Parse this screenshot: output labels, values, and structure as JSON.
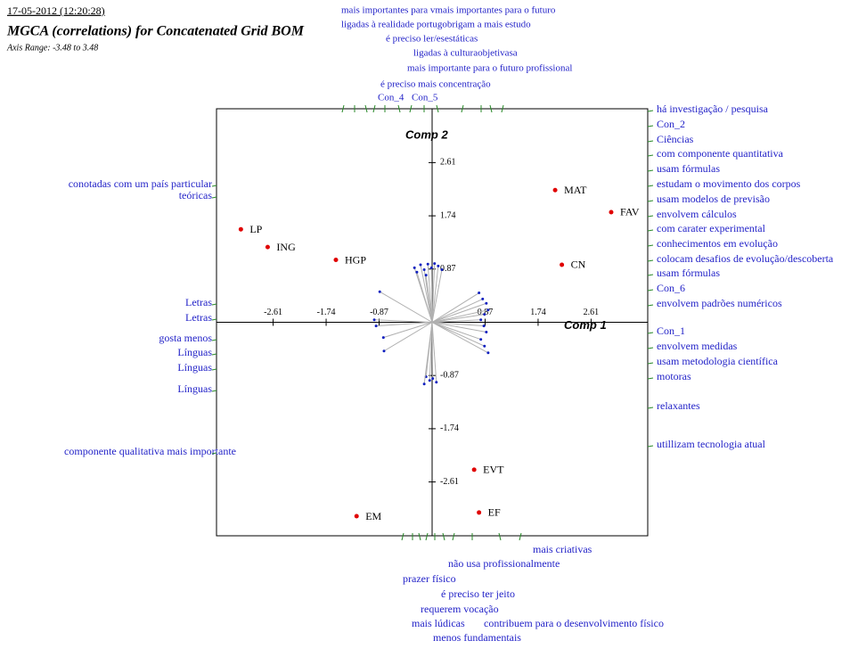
{
  "chart_data": {
    "type": "scatter",
    "timestamp": "17-05-2012 (12:20:28)",
    "title": "MGCA (correlations) for Concatenated Grid BOM",
    "subtitle": "Axis Range:   -3.48 to   3.48",
    "x_label": "Comp 1",
    "y_label": "Comp 2",
    "xlim": [
      -3.54,
      3.54
    ],
    "ylim": [
      -3.49,
      3.49
    ],
    "xticks": [
      -2.61,
      -1.74,
      -0.87,
      0.87,
      1.74,
      2.61
    ],
    "yticks": [
      2.61,
      1.74,
      0.87,
      -0.87,
      -1.74,
      -2.61
    ],
    "point_color": "#e00000",
    "vector_color": "#b0b0b0",
    "elements": {
      "names": [
        "MAT",
        "FAV",
        "CN",
        "LP",
        "ING",
        "HGP",
        "EVT",
        "EF",
        "EM"
      ],
      "x": [
        2.02,
        2.94,
        2.13,
        -3.14,
        -2.7,
        -1.58,
        0.69,
        0.77,
        -1.24
      ],
      "y": [
        2.16,
        1.8,
        0.94,
        1.52,
        1.23,
        1.02,
        -2.41,
        -3.11,
        -3.17
      ]
    },
    "vectors": {
      "x": [
        -0.29,
        -0.25,
        -0.19,
        -0.13,
        -0.07,
        -0.01,
        0.04,
        0.1,
        0.16,
        -0.1,
        0.77,
        0.83,
        0.89,
        0.92,
        0.86,
        0.8,
        0.85,
        0.89,
        0.8,
        0.86,
        0.92,
        -0.86,
        -0.95,
        -0.92,
        -0.8,
        -0.79,
        -0.1,
        -0.04,
        0.01,
        0.07,
        -0.13
      ],
      "y": [
        0.89,
        0.82,
        0.94,
        0.86,
        0.95,
        0.89,
        0.96,
        0.92,
        0.86,
        0.77,
        0.48,
        0.38,
        0.31,
        0.2,
        0.13,
        0.04,
        -0.06,
        -0.16,
        -0.28,
        -0.39,
        -0.5,
        0.5,
        0.04,
        -0.06,
        -0.25,
        -0.47,
        -0.89,
        -0.95,
        -0.92,
        -0.98,
        -1.01
      ]
    },
    "constructs": {
      "top": [
        "mais importantes para vmais importantes para o futuro",
        "ligadas à realidade portugobrigam a mais estudo",
        "é preciso ler/esestáticas",
        "ligadas à culturaobjetivasa",
        "mais importante para o futuro profissional",
        "é preciso mais concentração",
        "Con_4",
        "Con_5"
      ],
      "right": [
        "há investigação / pesquisa",
        "Con_2",
        "Ciências",
        "com componente quantitativa",
        "usam fórmulas",
        "estudam o movimento dos corpos",
        "usam modelos de previsão",
        "envolvem cálculos",
        "com carater experimental",
        "conhecimentos em evolução",
        "colocam desafios de evolução/descoberta",
        "usam fórmulas",
        "Con_6",
        "envolvem padrões numéricos",
        "Con_1",
        "envolvem medidas",
        "usam metodologia científica",
        "motoras",
        "relaxantes",
        "utillizam tecnologia atual"
      ],
      "left": [
        "conotadas com um país particular",
        "teóricas",
        "Letras",
        "Letras",
        "gosta menos",
        "Línguas",
        "Línguas",
        "Línguas",
        "componente qualitativa mais importante"
      ],
      "bottom": [
        "mais criativas",
        "não usa profissionalmente",
        "prazer físico",
        "é preciso ter jeito",
        "requerem vocação",
        "mais lúdicas",
        "contribuem para o desenvolvimento físico",
        "menos fundamentais"
      ]
    }
  }
}
